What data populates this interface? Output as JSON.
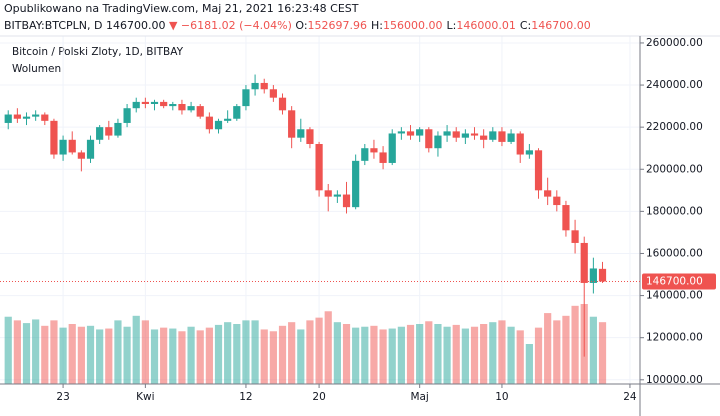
{
  "header": {
    "published": "Opublikowano na TradingView.com, Maj 21, 2021 16:23:48 CEST",
    "symbol": "BITBAY:BTCPLN, D",
    "price": "146700.00",
    "change": "▼ −6181.02 (−4.04%)",
    "ohlc": [
      {
        "k": "O:",
        "v": "152697.96"
      },
      {
        "k": "H:",
        "v": "156000.00"
      },
      {
        "k": "L:",
        "v": "146000.01"
      },
      {
        "k": "C:",
        "v": "146700.00"
      }
    ]
  },
  "chart_data": {
    "type": "candlestick",
    "title": "Bitcoin / Polski Zloty, 1D, BITBAY",
    "volume_name": "Wolumen",
    "up_color": "#26a69a",
    "down_color": "#ef5350",
    "open": [
      222000,
      226000,
      224000,
      225000,
      226000,
      223000,
      207000,
      214000,
      208000,
      205000,
      214000,
      220000,
      216000,
      222000,
      229000,
      232000,
      231000,
      232000,
      230000,
      231000,
      228000,
      230000,
      225000,
      219000,
      223000,
      224000,
      230000,
      238000,
      241000,
      238000,
      234000,
      228000,
      215000,
      219000,
      212000,
      190000,
      187000,
      188000,
      182000,
      204000,
      210000,
      208000,
      203000,
      217000,
      218000,
      216000,
      219000,
      210000,
      216000,
      218000,
      215000,
      217000,
      216000,
      214000,
      218000,
      213000,
      217000,
      207000,
      209000,
      190000,
      187000,
      183000,
      171000,
      165000,
      146000,
      152697.96
    ],
    "high": [
      228000,
      229000,
      227000,
      228000,
      227000,
      224000,
      216000,
      218000,
      209000,
      216000,
      221000,
      223000,
      224000,
      231000,
      234000,
      234000,
      233000,
      233000,
      232000,
      233000,
      232000,
      231000,
      227000,
      224000,
      228000,
      231000,
      240000,
      245000,
      243000,
      240000,
      236000,
      230000,
      224000,
      220000,
      213000,
      193000,
      190000,
      194000,
      207000,
      212000,
      214000,
      211000,
      219000,
      220000,
      221000,
      220000,
      220000,
      218000,
      221000,
      220000,
      219000,
      220000,
      219000,
      220000,
      220000,
      219000,
      218000,
      212000,
      210000,
      196000,
      190000,
      185000,
      176000,
      168000,
      158000,
      156000
    ],
    "low": [
      219000,
      222000,
      221000,
      223000,
      221000,
      205000,
      204000,
      207000,
      199000,
      203000,
      212000,
      214000,
      215000,
      220000,
      227000,
      229000,
      228000,
      229000,
      228000,
      226000,
      227000,
      224000,
      217000,
      217000,
      222000,
      223000,
      228000,
      235000,
      236000,
      232000,
      226000,
      210000,
      213000,
      210000,
      187000,
      180000,
      184000,
      179000,
      181000,
      202000,
      205000,
      200000,
      202000,
      214000,
      214000,
      213000,
      208000,
      206000,
      213000,
      213000,
      212000,
      214000,
      210000,
      213000,
      211000,
      212000,
      203000,
      205000,
      186000,
      183000,
      180000,
      168000,
      160000,
      111000,
      141000,
      146000.01
    ],
    "close": [
      226000,
      224000,
      225000,
      226000,
      223000,
      207000,
      214000,
      208000,
      205000,
      214000,
      220000,
      216000,
      222000,
      229000,
      232000,
      231000,
      232000,
      230000,
      231000,
      228000,
      230000,
      225000,
      219000,
      223000,
      224000,
      230000,
      238000,
      241000,
      238000,
      234000,
      228000,
      215000,
      219000,
      212000,
      190000,
      187000,
      188000,
      182000,
      204000,
      210000,
      208000,
      203000,
      217000,
      218000,
      216000,
      219000,
      210000,
      216000,
      218000,
      215000,
      217000,
      216000,
      214000,
      218000,
      213000,
      217000,
      207000,
      209000,
      190000,
      187000,
      183000,
      171000,
      165000,
      146000,
      152881.02,
      146700
    ],
    "volume": [
      74,
      70,
      67,
      71,
      64,
      70,
      62,
      66,
      63,
      64,
      60,
      61,
      70,
      63,
      75,
      70,
      60,
      62,
      61,
      58,
      63,
      59,
      62,
      65,
      68,
      66,
      70,
      70,
      60,
      58,
      64,
      68,
      60,
      70,
      73,
      80,
      68,
      66,
      62,
      63,
      64,
      60,
      61,
      63,
      65,
      66,
      69,
      66,
      63,
      65,
      61,
      63,
      66,
      68,
      70,
      63,
      59,
      44,
      62,
      78,
      70,
      75,
      86,
      88,
      74,
      68
    ],
    "xlim": [
      -0.9,
      69.1
    ],
    "xticks": [
      {
        "value": 6,
        "label": "23"
      },
      {
        "value": 15,
        "label": "Kwi"
      },
      {
        "value": 26,
        "label": "12"
      },
      {
        "value": 34,
        "label": "20"
      },
      {
        "value": 45,
        "label": "Maj"
      },
      {
        "value": 54,
        "label": "10"
      },
      {
        "value": 68,
        "label": "24"
      }
    ],
    "ylim": [
      98000,
      263300
    ],
    "yticks": [
      {
        "value": 100000,
        "label": "100000.00"
      },
      {
        "value": 120000,
        "label": "120000.00"
      },
      {
        "value": 140000,
        "label": "140000.00"
      },
      {
        "value": 160000,
        "label": "160000.00"
      },
      {
        "value": 180000,
        "label": "180000.00"
      },
      {
        "value": 200000,
        "label": "200000.00"
      },
      {
        "value": 220000,
        "label": "220000.00"
      },
      {
        "value": 240000,
        "label": "240000.00"
      },
      {
        "value": 260000,
        "label": "260000.00"
      }
    ],
    "last_price": {
      "value": 146700,
      "label": "146700.00"
    },
    "grid": true
  }
}
